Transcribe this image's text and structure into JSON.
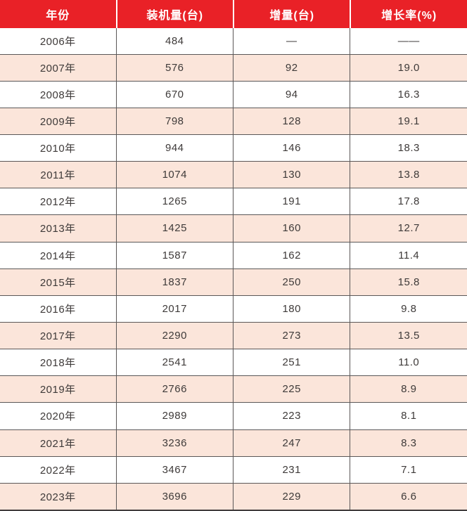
{
  "table": {
    "columns": [
      {
        "key": "year",
        "label": "年份"
      },
      {
        "key": "installed",
        "label": "装机量(台)"
      },
      {
        "key": "increment",
        "label": "增量(台)"
      },
      {
        "key": "growth",
        "label": "增长率(%)"
      }
    ],
    "cell_keys": [
      "year",
      "installed",
      "increment",
      "growth"
    ],
    "rows": [
      [
        "2006年",
        "484",
        "—",
        "——"
      ],
      [
        "2007年",
        "576",
        "92",
        "19.0"
      ],
      [
        "2008年",
        "670",
        "94",
        "16.3"
      ],
      [
        "2009年",
        "798",
        "128",
        "19.1"
      ],
      [
        "2010年",
        "944",
        "146",
        "18.3"
      ],
      [
        "2011年",
        "1074",
        "130",
        "13.8"
      ],
      [
        "2012年",
        "1265",
        "191",
        "17.8"
      ],
      [
        "2013年",
        "1425",
        "160",
        "12.7"
      ],
      [
        "2014年",
        "1587",
        "162",
        "11.4"
      ],
      [
        "2015年",
        "1837",
        "250",
        "15.8"
      ],
      [
        "2016年",
        "2017",
        "180",
        "9.8"
      ],
      [
        "2017年",
        "2290",
        "273",
        "13.5"
      ],
      [
        "2018年",
        "2541",
        "251",
        "11.0"
      ],
      [
        "2019年",
        "2766",
        "225",
        "8.9"
      ],
      [
        "2020年",
        "2989",
        "223",
        "8.1"
      ],
      [
        "2021年",
        "3236",
        "247",
        "8.3"
      ],
      [
        "2022年",
        "3467",
        "231",
        "7.1"
      ],
      [
        "2023年",
        "3696",
        "229",
        "6.6"
      ]
    ]
  },
  "colors": {
    "header_bg": "#E92127",
    "header_text": "#FFFFFF",
    "stripe_bg": "#FBE5DA",
    "grid_line": "#5A5757",
    "grid_line_dark": "#413D3D",
    "text": "#3E3A39"
  },
  "chart_data": {
    "type": "table",
    "title": "",
    "columns": [
      "年份",
      "装机量(台)",
      "增量(台)",
      "增长率(%)"
    ],
    "rows": [
      [
        "2006年",
        484,
        null,
        null
      ],
      [
        "2007年",
        576,
        92,
        19.0
      ],
      [
        "2008年",
        670,
        94,
        16.3
      ],
      [
        "2009年",
        798,
        128,
        19.1
      ],
      [
        "2010年",
        944,
        146,
        18.3
      ],
      [
        "2011年",
        1074,
        130,
        13.8
      ],
      [
        "2012年",
        1265,
        191,
        17.8
      ],
      [
        "2013年",
        1425,
        160,
        12.7
      ],
      [
        "2014年",
        1587,
        162,
        11.4
      ],
      [
        "2015年",
        1837,
        250,
        15.8
      ],
      [
        "2016年",
        2017,
        180,
        9.8
      ],
      [
        "2017年",
        2290,
        273,
        13.5
      ],
      [
        "2018年",
        2541,
        251,
        11.0
      ],
      [
        "2019年",
        2766,
        225,
        8.9
      ],
      [
        "2020年",
        2989,
        223,
        8.1
      ],
      [
        "2021年",
        3236,
        247,
        8.3
      ],
      [
        "2022年",
        3467,
        231,
        7.1
      ],
      [
        "2023年",
        3696,
        229,
        6.6
      ]
    ],
    "notes": "2006 row has dash placeholders (no prior-year data); stripe rows are every second data row starting at 2007."
  }
}
